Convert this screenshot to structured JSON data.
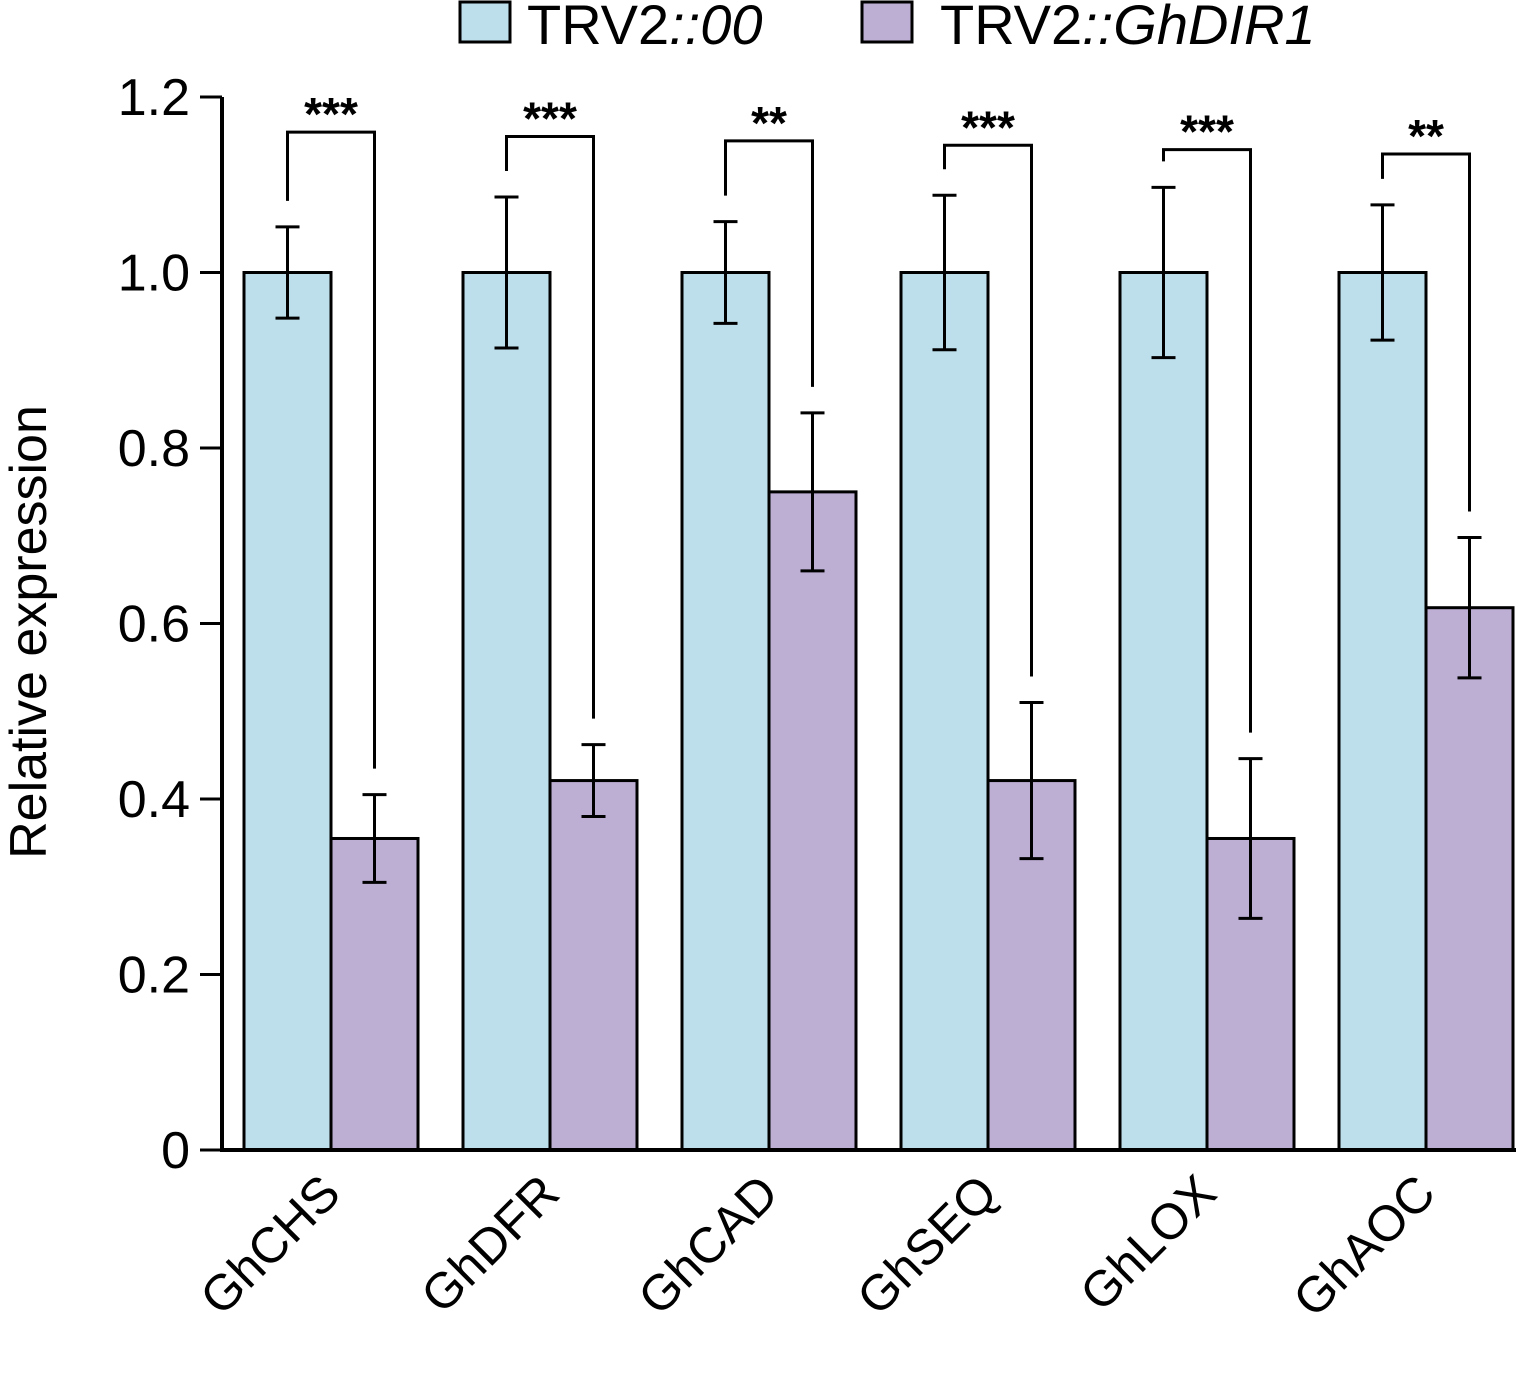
{
  "chart_data": {
    "type": "bar",
    "ylabel": "Relative expression",
    "xlabel": "",
    "ylim": [
      0,
      1.2
    ],
    "yticks": [
      0,
      0.2,
      0.4,
      0.6,
      0.8,
      1.0,
      1.2
    ],
    "ytick_labels": [
      "0",
      "0.2",
      "0.4",
      "0.6",
      "0.8",
      "1.0",
      "1.2"
    ],
    "grid": false,
    "legend_position": "top",
    "categories": [
      "GhCHS",
      "GhDFR",
      "GhCAD",
      "GhSEQ",
      "GhLOX",
      "GhAOC"
    ],
    "series": [
      {
        "name_plain": "TRV2",
        "name_italic": "::00",
        "color": "#bcdfeb",
        "values": [
          1.0,
          1.0,
          1.0,
          1.0,
          1.0,
          1.0
        ],
        "errors": [
          0.052,
          0.086,
          0.058,
          0.088,
          0.097,
          0.077
        ]
      },
      {
        "name_plain": "TRV2",
        "name_italic": "::GhDIR1",
        "color": "#bdaed3",
        "values": [
          0.355,
          0.421,
          0.75,
          0.421,
          0.355,
          0.618
        ],
        "errors": [
          0.05,
          0.041,
          0.09,
          0.089,
          0.091,
          0.08
        ]
      }
    ],
    "significance": [
      {
        "label": "***",
        "bracket_y": 1.16
      },
      {
        "label": "***",
        "bracket_y": 1.155
      },
      {
        "label": "**",
        "bracket_y": 1.15
      },
      {
        "label": "***",
        "bracket_y": 1.145
      },
      {
        "label": "***",
        "bracket_y": 1.14
      },
      {
        "label": "**",
        "bracket_y": 1.135
      }
    ]
  }
}
